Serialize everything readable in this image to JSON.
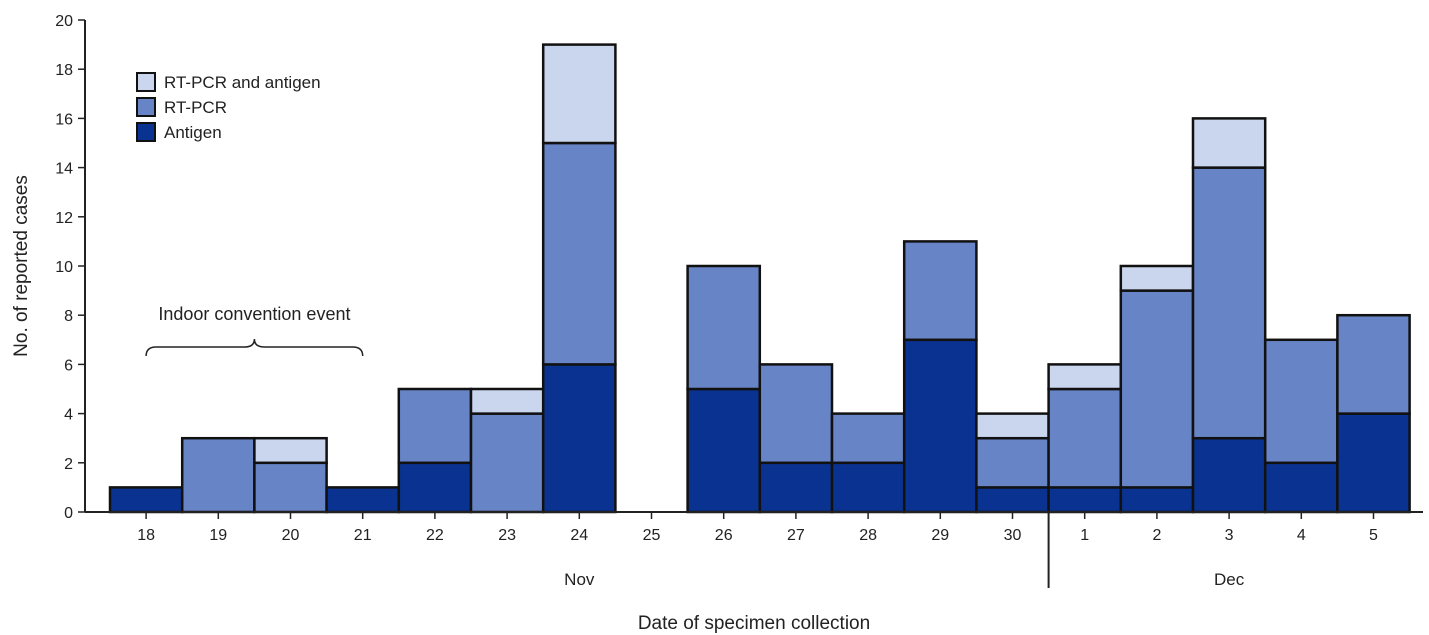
{
  "chart_data": {
    "type": "bar",
    "stacked": true,
    "categories": [
      "18",
      "19",
      "20",
      "21",
      "22",
      "23",
      "24",
      "25",
      "26",
      "27",
      "28",
      "29",
      "30",
      "1",
      "2",
      "3",
      "4",
      "5"
    ],
    "months": [
      {
        "label": "Nov",
        "from": 0,
        "to": 12
      },
      {
        "label": "Dec",
        "from": 13,
        "to": 17
      }
    ],
    "series": [
      {
        "name": "Antigen",
        "color": "#0a3391",
        "values": [
          1,
          0,
          0,
          1,
          2,
          0,
          6,
          0,
          5,
          2,
          2,
          7,
          1,
          1,
          1,
          3,
          2,
          4
        ]
      },
      {
        "name": "RT-PCR",
        "color": "#6684c6",
        "values": [
          0,
          3,
          2,
          0,
          3,
          4,
          9,
          0,
          5,
          4,
          2,
          4,
          2,
          4,
          8,
          11,
          5,
          4
        ]
      },
      {
        "name": "RT-PCR and antigen",
        "color": "#cad5ee",
        "values": [
          0,
          0,
          1,
          0,
          0,
          1,
          4,
          0,
          0,
          0,
          0,
          0,
          1,
          1,
          1,
          2,
          0,
          0
        ]
      }
    ],
    "legend_order": [
      "RT-PCR and antigen",
      "RT-PCR",
      "Antigen"
    ],
    "legend_position": "top-left",
    "xlabel": "Date of specimen collection",
    "ylabel": "No. of reported cases",
    "ylim": [
      0,
      20
    ],
    "yticks": [
      0,
      2,
      4,
      6,
      8,
      10,
      12,
      14,
      16,
      18,
      20
    ],
    "grid": false,
    "annotation": {
      "text": "Indoor convention event",
      "from_category": 0,
      "to_category": 3
    }
  }
}
